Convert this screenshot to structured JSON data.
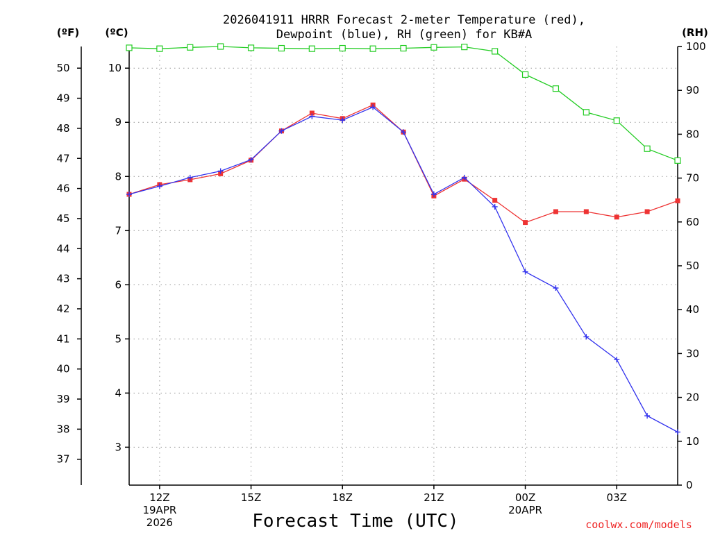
{
  "chart_data": {
    "type": "line",
    "title_line1": "2026041911 HRRR Forecast 2-meter Temperature (red),",
    "title_line2": "Dewpoint (blue), RH (green) for KB#A",
    "xlabel": "Forecast Time (UTC)",
    "credit": "coolwx.com/models",
    "units": {
      "fahrenheit": "(ºF)",
      "celsius": "(ºC)",
      "rh": "(RH)"
    },
    "x_hours": [
      11,
      12,
      13,
      14,
      15,
      16,
      17,
      18,
      19,
      20,
      21,
      22,
      23,
      24,
      25,
      26,
      27,
      28,
      29
    ],
    "x_range": [
      11,
      29
    ],
    "x_ticks": [
      {
        "hour": 12,
        "label": "12Z",
        "sub1": "19APR",
        "sub2": "2026"
      },
      {
        "hour": 15,
        "label": "15Z",
        "sub1": "",
        "sub2": ""
      },
      {
        "hour": 18,
        "label": "18Z",
        "sub1": "",
        "sub2": ""
      },
      {
        "hour": 21,
        "label": "21Z",
        "sub1": "",
        "sub2": ""
      },
      {
        "hour": 24,
        "label": "00Z",
        "sub1": "20APR",
        "sub2": ""
      },
      {
        "hour": 27,
        "label": "03Z",
        "sub1": "",
        "sub2": ""
      }
    ],
    "celsius_axis": {
      "min": 2.3,
      "max": 10.4,
      "ticks": [
        3,
        4,
        5,
        6,
        7,
        8,
        9,
        10
      ]
    },
    "fahrenheit_ticks": [
      37,
      38,
      39,
      40,
      41,
      42,
      43,
      44,
      45,
      46,
      47,
      48,
      49,
      50
    ],
    "rh_axis": {
      "min": 0,
      "max": 100,
      "ticks": [
        0,
        10,
        20,
        30,
        40,
        50,
        60,
        70,
        80,
        90,
        100
      ]
    },
    "series": [
      {
        "name": "Temperature",
        "axis": "celsius",
        "color": "#ee3333",
        "marker": "filled-square",
        "values": [
          7.67,
          7.85,
          7.94,
          8.05,
          8.3,
          8.84,
          9.17,
          9.07,
          9.32,
          8.82,
          7.64,
          7.95,
          7.56,
          7.15,
          7.35,
          7.35,
          7.25,
          7.35,
          7.55
        ]
      },
      {
        "name": "Dewpoint",
        "axis": "celsius",
        "color": "#3333ee",
        "marker": "plus",
        "values": [
          7.67,
          7.82,
          7.98,
          8.1,
          8.31,
          8.84,
          9.11,
          9.04,
          9.28,
          8.82,
          7.67,
          7.98,
          7.44,
          6.24,
          5.94,
          5.04,
          4.62,
          3.58,
          3.28
        ]
      },
      {
        "name": "Relative Humidity",
        "axis": "rh",
        "color": "#22cc22",
        "marker": "open-square",
        "values": [
          99.7,
          99.5,
          99.8,
          100,
          99.7,
          99.6,
          99.5,
          99.6,
          99.5,
          99.6,
          99.8,
          99.9,
          98.9,
          93.6,
          90.4,
          85,
          83.1,
          76.7,
          74
        ]
      }
    ]
  }
}
